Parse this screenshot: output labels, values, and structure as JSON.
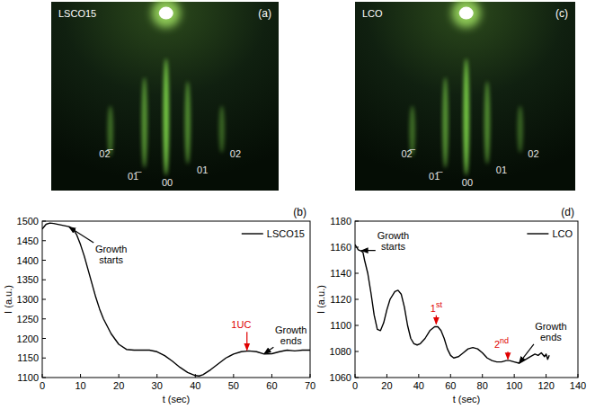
{
  "chart_data": [
    {
      "type": "image",
      "panel": "(a)",
      "title": "LSCO15",
      "annotations": [
        {
          "text": "02̅"
        },
        {
          "text": "01̅"
        },
        {
          "text": "00"
        },
        {
          "text": "01"
        },
        {
          "text": "02"
        }
      ]
    },
    {
      "type": "line",
      "panel": "(b)",
      "x_label": "t (sec)",
      "y_label": "I (a.u.)",
      "x": [
        0,
        1,
        2,
        3,
        5,
        7,
        8,
        9,
        10,
        11,
        12,
        13,
        14,
        15,
        16,
        18,
        20,
        22,
        24,
        26,
        28,
        30,
        32,
        34,
        36,
        38,
        40,
        41,
        42,
        44,
        46,
        48,
        50,
        52,
        54,
        56,
        58,
        60,
        62,
        64,
        66,
        68,
        70
      ],
      "series": [
        {
          "name": "LSCO15",
          "color": "#000000",
          "values": [
            1480,
            1492,
            1495,
            1494,
            1490,
            1486,
            1480,
            1465,
            1440,
            1410,
            1375,
            1340,
            1305,
            1275,
            1250,
            1212,
            1185,
            1172,
            1170,
            1170,
            1170,
            1166,
            1156,
            1142,
            1126,
            1113,
            1105,
            1104,
            1107,
            1120,
            1135,
            1150,
            1160,
            1166,
            1168,
            1166,
            1160,
            1161,
            1166,
            1170,
            1168,
            1170,
            1170
          ]
        }
      ],
      "xlim": [
        0,
        70
      ],
      "ylim": [
        1100,
        1500
      ],
      "xticks": [
        0,
        10,
        20,
        30,
        40,
        50,
        60,
        70
      ],
      "yticks": [
        1100,
        1150,
        1200,
        1250,
        1300,
        1350,
        1400,
        1450,
        1500
      ],
      "legend": "upper right",
      "annotations": [
        {
          "text": "Growth starts",
          "x": 7,
          "y": 1485,
          "text_x": 18,
          "text_y": 1415
        },
        {
          "text": "1UC",
          "x": 53.5,
          "y": 1170,
          "text_x": 52,
          "text_y": 1235,
          "color": "#e00000"
        },
        {
          "text": "Growth ends",
          "x": 58,
          "y": 1161,
          "text_x": 65,
          "text_y": 1208
        }
      ]
    },
    {
      "type": "image",
      "panel": "(c)",
      "title": "LCO",
      "annotations": [
        {
          "text": "02̅"
        },
        {
          "text": "01̅"
        },
        {
          "text": "00"
        },
        {
          "text": "01"
        },
        {
          "text": "02"
        }
      ]
    },
    {
      "type": "line",
      "panel": "(d)",
      "x_label": "t (sec)",
      "y_label": "I (a.u.)",
      "x": [
        0,
        1,
        2,
        4,
        5,
        6,
        8,
        10,
        12,
        14,
        16,
        18,
        20,
        22,
        25,
        27,
        29,
        31,
        33,
        35,
        37,
        39,
        41,
        44,
        47,
        50,
        52,
        54,
        56,
        58,
        60,
        62,
        65,
        68,
        71,
        74,
        77,
        80,
        83,
        86,
        89,
        92,
        95,
        97,
        100,
        103,
        106,
        110,
        113,
        115,
        117,
        119,
        120,
        121,
        122
      ],
      "series": [
        {
          "name": "LCO",
          "color": "#000000",
          "values": [
            1162,
            1160,
            1158,
            1157,
            1156,
            1150,
            1140,
            1125,
            1108,
            1097,
            1096,
            1102,
            1112,
            1120,
            1126,
            1127,
            1124,
            1114,
            1100,
            1090,
            1086,
            1085,
            1086,
            1090,
            1096,
            1099,
            1099,
            1096,
            1090,
            1082,
            1077,
            1075,
            1076,
            1079,
            1082,
            1083,
            1082,
            1079,
            1075,
            1073,
            1072,
            1072,
            1073,
            1073,
            1072,
            1071,
            1073,
            1076,
            1078,
            1077,
            1079,
            1076,
            1078,
            1074,
            1077
          ]
        }
      ],
      "xlim": [
        0,
        140
      ],
      "ylim": [
        1060,
        1180
      ],
      "xticks": [
        0,
        20,
        40,
        60,
        80,
        100,
        120,
        140
      ],
      "yticks": [
        1060,
        1080,
        1100,
        1120,
        1140,
        1160,
        1180
      ],
      "legend": "upper right",
      "annotations": [
        {
          "text": "Growth starts",
          "x": 4,
          "y": 1157.5,
          "text_x": 24,
          "text_y": 1165
        },
        {
          "text": "1st",
          "x": 51,
          "y": 1101,
          "text_x": 51,
          "text_y": 1114,
          "color": "#e00000"
        },
        {
          "text": "2nd",
          "x": 96,
          "y": 1074,
          "text_x": 92,
          "text_y": 1086,
          "color": "#e00000"
        },
        {
          "text": "Growth ends",
          "x": 103,
          "y": 1071,
          "text_x": 123,
          "text_y": 1095
        }
      ]
    }
  ]
}
